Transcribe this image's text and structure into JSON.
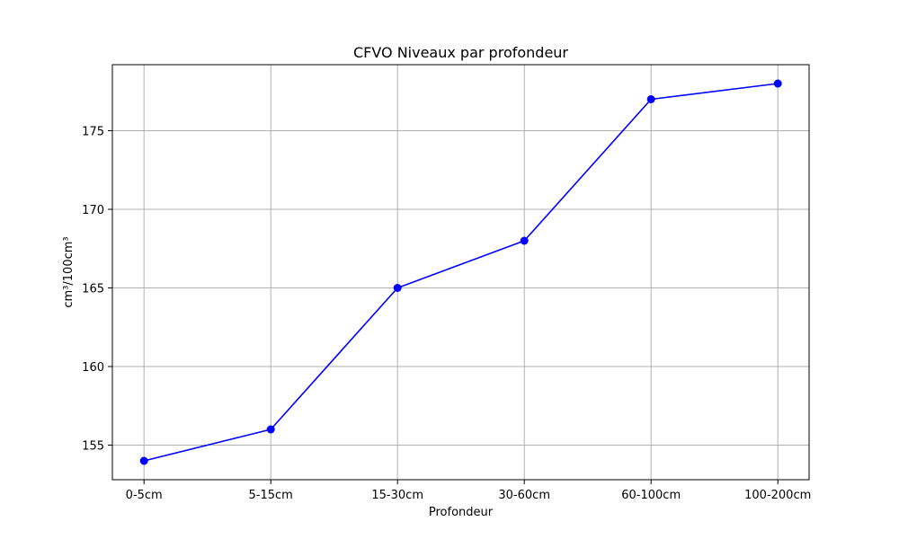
{
  "chart_data": {
    "type": "line",
    "title": "CFVO Niveaux par profondeur",
    "xlabel": "Profondeur",
    "ylabel": "cm³/100cm³",
    "categories": [
      "0-5cm",
      "5-15cm",
      "15-30cm",
      "30-60cm",
      "60-100cm",
      "100-200cm"
    ],
    "series": [
      {
        "values": [
          154,
          156,
          165,
          168,
          177,
          178
        ]
      }
    ],
    "ylim": [
      152.8,
      179.2
    ],
    "yticks": [
      155,
      160,
      165,
      170,
      175
    ],
    "grid": true,
    "colors": {
      "line": "#0000ff",
      "marker": "#0000ff",
      "grid": "#b0b0b0",
      "axes": "#000000"
    }
  }
}
